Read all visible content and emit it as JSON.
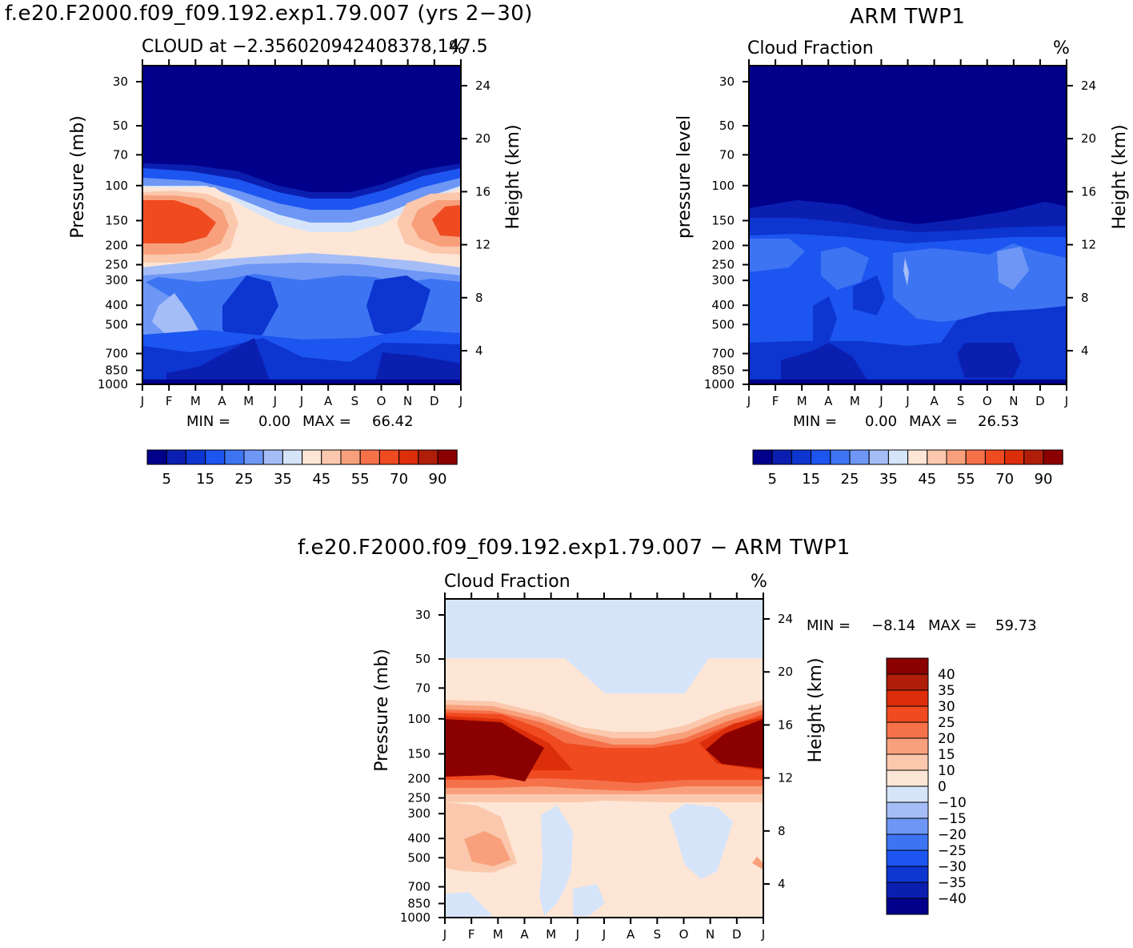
{
  "titles": {
    "model_title": "f.e20.F2000.f09_f09.192.exp1.79.007 (yrs 2−30)",
    "obs_title": "ARM TWP1",
    "diff_title": "f.e20.F2000.f09_f09.192.exp1.79.007 − ARM TWP1"
  },
  "chart_data": [
    {
      "type": "heatmap",
      "subtitle": "CLOUD at −2.356020942408378,147.5",
      "units": "%",
      "ylabel": "Pressure (mb)",
      "ylabel_right": "Height (km)",
      "x": [
        "J",
        "F",
        "M",
        "A",
        "M",
        "J",
        "J",
        "A",
        "S",
        "O",
        "N",
        "D",
        "J"
      ],
      "y_pressure_ticks": [
        "30",
        "50",
        "70",
        "100",
        "150",
        "200",
        "250",
        "300",
        "400",
        "500",
        "700",
        "850",
        "1000"
      ],
      "y_height_ticks": [
        "24",
        "20",
        "16",
        "12",
        "8",
        "4"
      ],
      "min_label": "MIN =",
      "min_value": "0.00",
      "max_label": "MAX =",
      "max_value": "66.42",
      "colorbar_labels": [
        "5",
        "15",
        "25",
        "35",
        "45",
        "55",
        "70",
        "90"
      ]
    },
    {
      "type": "heatmap",
      "subtitle": "Cloud Fraction",
      "units": "%",
      "ylabel": "pressure level",
      "ylabel_right": "Height (km)",
      "x": [
        "J",
        "F",
        "M",
        "A",
        "M",
        "J",
        "J",
        "A",
        "S",
        "O",
        "N",
        "D",
        "J"
      ],
      "y_pressure_ticks": [
        "30",
        "50",
        "70",
        "100",
        "150",
        "200",
        "250",
        "300",
        "400",
        "500",
        "700",
        "850",
        "1000"
      ],
      "y_height_ticks": [
        "24",
        "20",
        "16",
        "12",
        "8",
        "4"
      ],
      "min_label": "MIN =",
      "min_value": "0.00",
      "max_label": "MAX =",
      "max_value": "26.53",
      "colorbar_labels": [
        "5",
        "15",
        "25",
        "35",
        "45",
        "55",
        "70",
        "90"
      ]
    },
    {
      "type": "heatmap",
      "subtitle": "Cloud Fraction",
      "units": "%",
      "ylabel": "Pressure (mb)",
      "ylabel_right": "Height (km)",
      "x": [
        "J",
        "F",
        "M",
        "A",
        "M",
        "J",
        "J",
        "A",
        "S",
        "O",
        "N",
        "D",
        "J"
      ],
      "y_pressure_ticks": [
        "30",
        "50",
        "70",
        "100",
        "150",
        "200",
        "250",
        "300",
        "400",
        "500",
        "700",
        "850",
        "1000"
      ],
      "y_height_ticks": [
        "24",
        "20",
        "16",
        "12",
        "8",
        "4"
      ],
      "min_label": "MIN =",
      "min_value": "−8.14",
      "max_label": "MAX =",
      "max_value": "59.73",
      "colorbar_labels": [
        "40",
        "35",
        "30",
        "25",
        "20",
        "15",
        "10",
        "0",
        "−10",
        "−15",
        "−20",
        "−25",
        "−30",
        "−35",
        "−40"
      ]
    }
  ],
  "colors": {
    "seq": [
      "#00008b",
      "#0a1fb0",
      "#0d35d0",
      "#1d55f0",
      "#3c74f2",
      "#6d96f5",
      "#a5bdf7",
      "#d6e4fa",
      "#fde6d6",
      "#fbc8ad",
      "#f8a07c",
      "#f5714a",
      "#f04a20",
      "#dc2e0a",
      "#b01e0a",
      "#8b0000"
    ],
    "div": [
      "#8b0000",
      "#b01e0a",
      "#dc2e0a",
      "#f04a20",
      "#f5714a",
      "#f8a07c",
      "#fbc8ad",
      "#fde6d6",
      "#d6e4fa",
      "#a5bdf7",
      "#6d96f5",
      "#3c74f2",
      "#1d55f0",
      "#0d35d0",
      "#0a1fb0",
      "#00008b"
    ]
  }
}
